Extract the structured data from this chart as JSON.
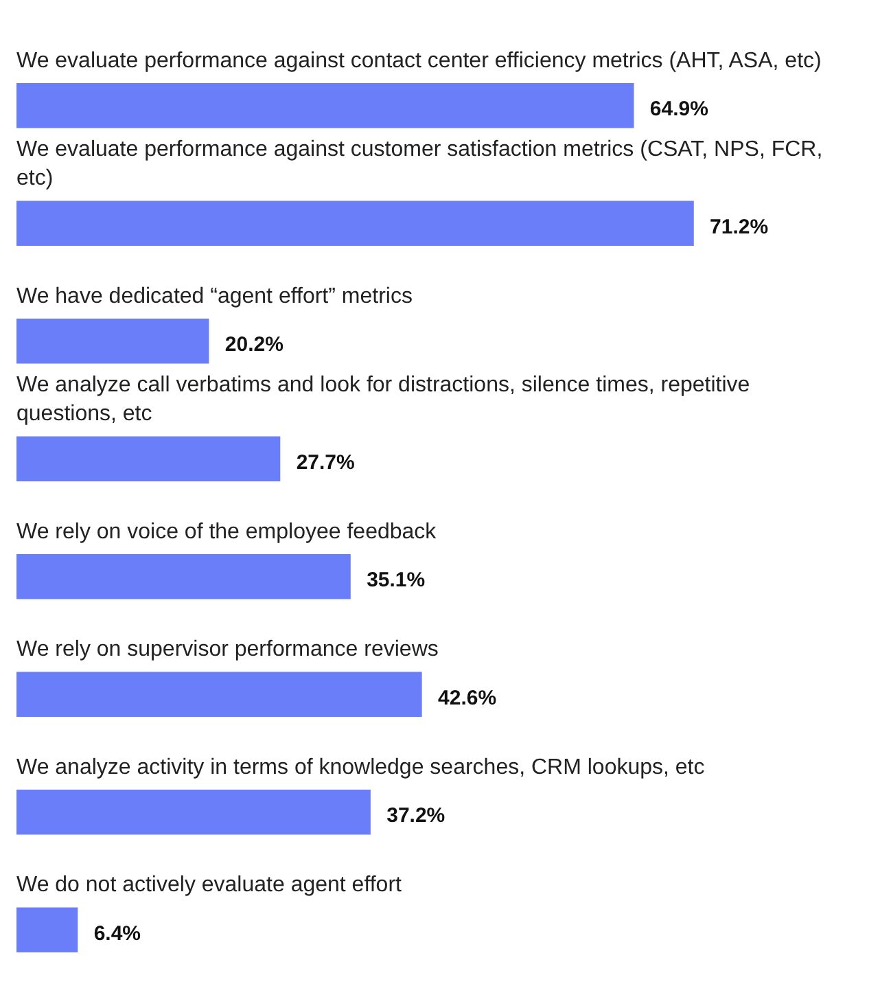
{
  "chart_data": {
    "type": "bar",
    "orientation": "horizontal",
    "relative": false,
    "categories": [
      "We evaluate performance against contact center efficiency metrics (AHT, ASA, etc)",
      "We evaluate performance against customer satisfaction metrics (CSAT, NPS, FCR, etc)",
      "We have dedicated “agent effort” metrics",
      "We analyze call verbatims and look for distractions, silence times, repetitive questions, etc",
      "We rely on voice of the employee feedback",
      "We rely on supervisor performance reviews",
      "We analyze activity in terms of knowledge searches, CRM lookups, etc",
      "We do not actively evaluate agent effort"
    ],
    "values": [
      64.9,
      71.2,
      20.2,
      27.7,
      35.1,
      42.6,
      37.2,
      6.4
    ],
    "value_labels": [
      "64.9%",
      "71.2%",
      "20.2%",
      "27.7%",
      "35.1%",
      "42.6%",
      "37.2%",
      "6.4%"
    ],
    "color": "#6b7ef9",
    "tick_labels": false
  }
}
